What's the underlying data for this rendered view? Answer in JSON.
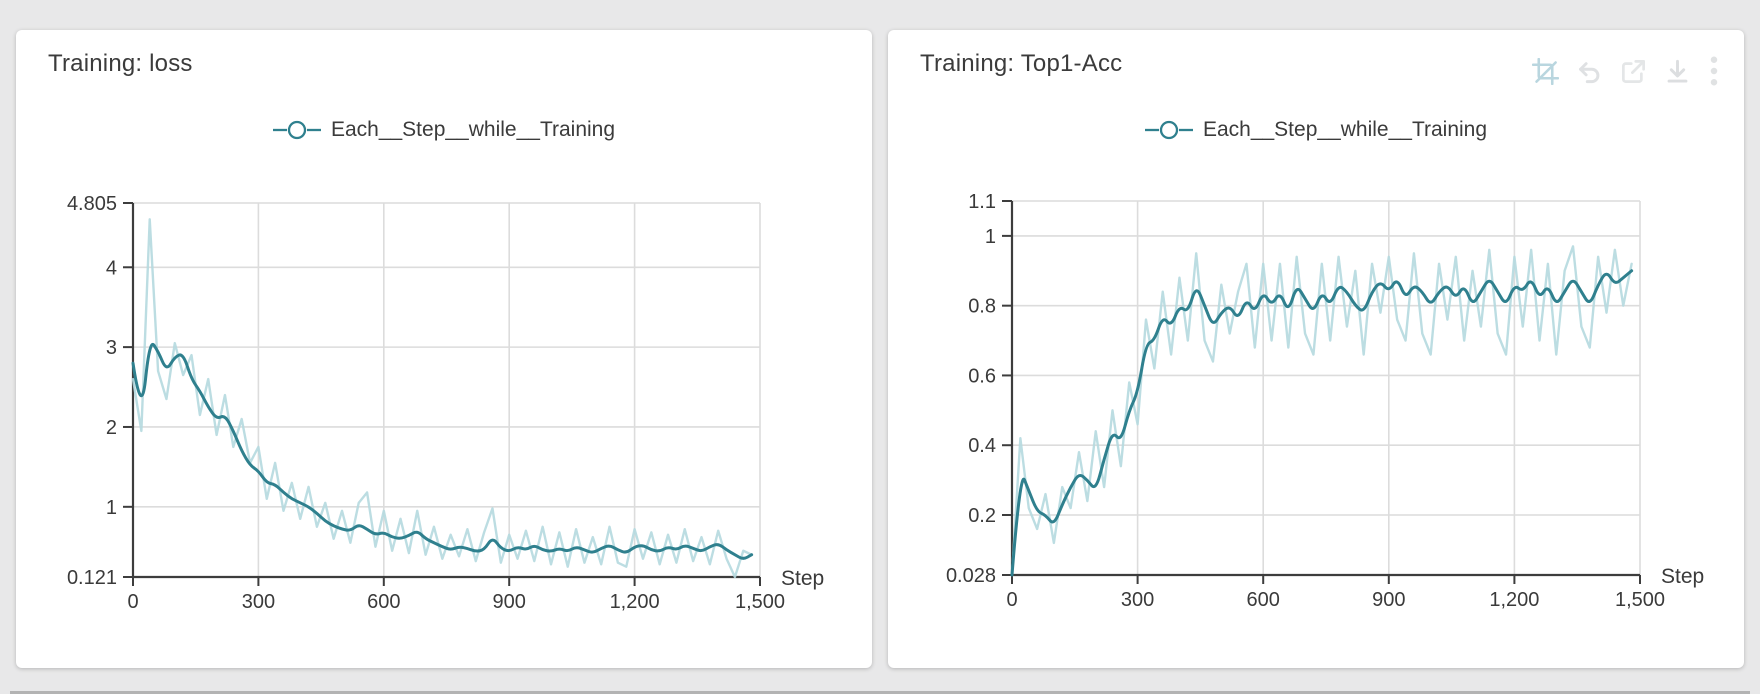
{
  "page": {
    "background": "#e8e8e9",
    "card_background": "#ffffff"
  },
  "colors": {
    "smoothed_line": "#2f808e",
    "raw_line": "#b5d9df",
    "grid": "#dcdcdc",
    "axis": "#3d3d3d",
    "text": "#3a3a3a",
    "icon_gray": "#dfe1e3",
    "icon_crop_blue": "#b9d6df"
  },
  "toolbar": {
    "icons": [
      {
        "name": "crop-zoom-icon"
      },
      {
        "name": "undo-icon"
      },
      {
        "name": "open-external-icon"
      },
      {
        "name": "download-icon"
      },
      {
        "name": "kebab-menu-icon"
      }
    ]
  },
  "chart_data": [
    {
      "type": "line",
      "title": "Training: loss",
      "legend_label": "Each__Step__while__Training",
      "xlabel": "Step",
      "xlim": [
        0,
        1500
      ],
      "ylim": [
        0.121,
        4.805
      ],
      "grid": true,
      "legend_position": "top-center",
      "x_ticks": [
        {
          "v": 0,
          "label": "0"
        },
        {
          "v": 300,
          "label": "300"
        },
        {
          "v": 600,
          "label": "600"
        },
        {
          "v": 900,
          "label": "900"
        },
        {
          "v": 1200,
          "label": "1,200"
        },
        {
          "v": 1500,
          "label": "1,500"
        }
      ],
      "y_ticks": [
        {
          "v": 4.805,
          "label": "4.805",
          "grid": true
        },
        {
          "v": 4,
          "label": "4",
          "grid": true
        },
        {
          "v": 3,
          "label": "3",
          "grid": true
        },
        {
          "v": 2,
          "label": "2",
          "grid": true
        },
        {
          "v": 1,
          "label": "1",
          "grid": true
        },
        {
          "v": 0.121,
          "label": "0.121",
          "grid": false
        }
      ],
      "x": [
        0,
        20,
        40,
        60,
        80,
        100,
        120,
        140,
        160,
        180,
        200,
        220,
        240,
        260,
        280,
        300,
        320,
        340,
        360,
        380,
        400,
        420,
        440,
        460,
        480,
        500,
        520,
        540,
        560,
        580,
        600,
        620,
        640,
        660,
        680,
        700,
        720,
        740,
        760,
        780,
        800,
        820,
        840,
        860,
        880,
        900,
        920,
        940,
        960,
        980,
        1000,
        1020,
        1040,
        1060,
        1080,
        1100,
        1120,
        1140,
        1160,
        1180,
        1200,
        1220,
        1240,
        1260,
        1280,
        1300,
        1320,
        1340,
        1360,
        1380,
        1400,
        1420,
        1440,
        1460,
        1480
      ],
      "series": [
        {
          "name": "raw",
          "values": [
            2.6,
            1.95,
            4.6,
            2.7,
            2.35,
            3.05,
            2.65,
            2.9,
            2.15,
            2.6,
            1.9,
            2.4,
            1.75,
            2.1,
            1.55,
            1.75,
            1.1,
            1.55,
            0.95,
            1.3,
            0.85,
            1.25,
            0.75,
            1.05,
            0.6,
            0.95,
            0.55,
            1.05,
            1.18,
            0.5,
            0.95,
            0.45,
            0.85,
            0.42,
            0.95,
            0.4,
            0.75,
            0.35,
            0.65,
            0.38,
            0.72,
            0.32,
            0.68,
            0.98,
            0.3,
            0.65,
            0.35,
            0.7,
            0.32,
            0.75,
            0.28,
            0.68,
            0.25,
            0.72,
            0.3,
            0.62,
            0.28,
            0.75,
            0.3,
            0.25,
            0.72,
            0.35,
            0.68,
            0.28,
            0.65,
            0.3,
            0.72,
            0.32,
            0.62,
            0.28,
            0.7,
            0.35,
            0.121,
            0.45,
            0.4
          ]
        },
        {
          "name": "smoothed",
          "values": [
            2.8,
            2.1,
            3.1,
            2.95,
            2.7,
            2.88,
            2.92,
            2.6,
            2.45,
            2.25,
            2.1,
            2.15,
            1.95,
            1.7,
            1.52,
            1.45,
            1.3,
            1.28,
            1.18,
            1.1,
            1.05,
            1.0,
            0.92,
            0.82,
            0.76,
            0.72,
            0.7,
            0.78,
            0.72,
            0.65,
            0.68,
            0.62,
            0.6,
            0.64,
            0.7,
            0.6,
            0.55,
            0.5,
            0.46,
            0.5,
            0.48,
            0.44,
            0.46,
            0.62,
            0.48,
            0.44,
            0.5,
            0.46,
            0.52,
            0.46,
            0.44,
            0.48,
            0.44,
            0.5,
            0.46,
            0.42,
            0.48,
            0.52,
            0.46,
            0.42,
            0.5,
            0.52,
            0.46,
            0.44,
            0.5,
            0.46,
            0.52,
            0.48,
            0.44,
            0.5,
            0.54,
            0.46,
            0.4,
            0.34,
            0.4
          ]
        }
      ]
    },
    {
      "type": "line",
      "title": "Training: Top1-Acc",
      "legend_label": "Each__Step__while__Training",
      "xlabel": "Step",
      "xlim": [
        0,
        1500
      ],
      "ylim": [
        0.028,
        1.1
      ],
      "grid": true,
      "legend_position": "top-center",
      "x_ticks": [
        {
          "v": 0,
          "label": "0"
        },
        {
          "v": 300,
          "label": "300"
        },
        {
          "v": 600,
          "label": "600"
        },
        {
          "v": 900,
          "label": "900"
        },
        {
          "v": 1200,
          "label": "1,200"
        },
        {
          "v": 1500,
          "label": "1,500"
        }
      ],
      "y_ticks": [
        {
          "v": 1.1,
          "label": "1.1",
          "grid": true
        },
        {
          "v": 1,
          "label": "1",
          "grid": true
        },
        {
          "v": 0.8,
          "label": "0.8",
          "grid": true
        },
        {
          "v": 0.6,
          "label": "0.6",
          "grid": true
        },
        {
          "v": 0.4,
          "label": "0.4",
          "grid": true
        },
        {
          "v": 0.2,
          "label": "0.2",
          "grid": true
        },
        {
          "v": 0.028,
          "label": "0.028",
          "grid": false
        }
      ],
      "x": [
        0,
        20,
        40,
        60,
        80,
        100,
        120,
        140,
        160,
        180,
        200,
        220,
        240,
        260,
        280,
        300,
        320,
        340,
        360,
        380,
        400,
        420,
        440,
        460,
        480,
        500,
        520,
        540,
        560,
        580,
        600,
        620,
        640,
        660,
        680,
        700,
        720,
        740,
        760,
        780,
        800,
        820,
        840,
        860,
        880,
        900,
        920,
        940,
        960,
        980,
        1000,
        1020,
        1040,
        1060,
        1080,
        1100,
        1120,
        1140,
        1160,
        1180,
        1200,
        1220,
        1240,
        1260,
        1280,
        1300,
        1320,
        1340,
        1360,
        1380,
        1400,
        1420,
        1440,
        1460,
        1480
      ],
      "series": [
        {
          "name": "raw",
          "values": [
            0.028,
            0.42,
            0.22,
            0.16,
            0.26,
            0.12,
            0.28,
            0.22,
            0.38,
            0.24,
            0.44,
            0.28,
            0.5,
            0.34,
            0.58,
            0.46,
            0.76,
            0.62,
            0.84,
            0.66,
            0.88,
            0.7,
            0.95,
            0.7,
            0.64,
            0.86,
            0.72,
            0.84,
            0.92,
            0.68,
            0.92,
            0.7,
            0.92,
            0.68,
            0.94,
            0.72,
            0.66,
            0.92,
            0.7,
            0.94,
            0.74,
            0.9,
            0.66,
            0.92,
            0.78,
            0.94,
            0.76,
            0.7,
            0.95,
            0.72,
            0.66,
            0.92,
            0.76,
            0.94,
            0.7,
            0.9,
            0.74,
            0.96,
            0.72,
            0.66,
            0.94,
            0.74,
            0.96,
            0.7,
            0.92,
            0.66,
            0.9,
            0.97,
            0.74,
            0.68,
            0.94,
            0.78,
            0.96,
            0.8,
            0.92
          ]
        },
        {
          "name": "smoothed",
          "values": [
            0.028,
            0.33,
            0.27,
            0.21,
            0.2,
            0.17,
            0.23,
            0.28,
            0.32,
            0.3,
            0.27,
            0.36,
            0.44,
            0.41,
            0.5,
            0.55,
            0.69,
            0.7,
            0.77,
            0.74,
            0.8,
            0.78,
            0.86,
            0.8,
            0.74,
            0.78,
            0.8,
            0.76,
            0.82,
            0.78,
            0.84,
            0.8,
            0.84,
            0.78,
            0.86,
            0.82,
            0.78,
            0.84,
            0.8,
            0.86,
            0.84,
            0.8,
            0.78,
            0.84,
            0.87,
            0.84,
            0.88,
            0.82,
            0.86,
            0.84,
            0.8,
            0.84,
            0.86,
            0.82,
            0.86,
            0.8,
            0.84,
            0.88,
            0.84,
            0.8,
            0.86,
            0.84,
            0.88,
            0.82,
            0.86,
            0.8,
            0.84,
            0.88,
            0.84,
            0.8,
            0.86,
            0.9,
            0.86,
            0.88,
            0.9
          ]
        }
      ]
    }
  ]
}
